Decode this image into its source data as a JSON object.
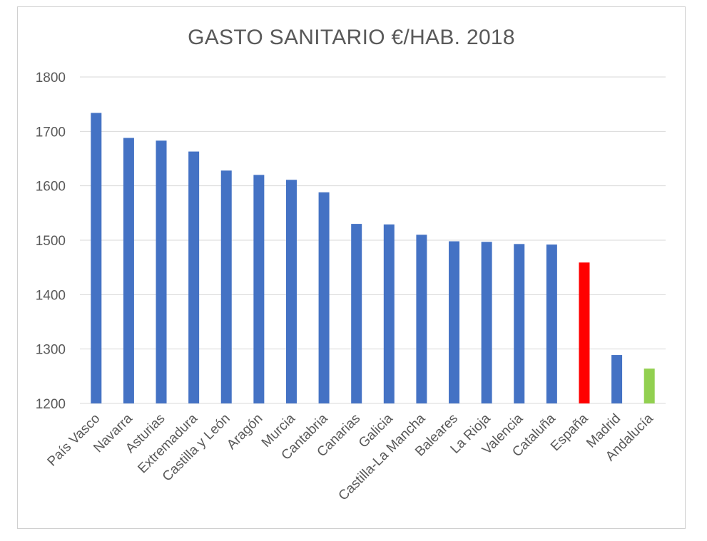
{
  "chart_data": {
    "type": "bar",
    "title": "GASTO SANITARIO €/HAB. 2018",
    "xlabel": "",
    "ylabel": "",
    "ylim": [
      1200,
      1800
    ],
    "yticks": [
      1200,
      1300,
      1400,
      1500,
      1600,
      1700,
      1800
    ],
    "grid": true,
    "legend": "none",
    "categories": [
      "País Vasco",
      "Navarra",
      "Asturias",
      "Extremadura",
      "Castilla y León",
      "Aragón",
      "Murcia",
      "Cantabria",
      "Canarias",
      "Galicia",
      "Castilla-La Mancha",
      "Baleares",
      "La Rioja",
      "Valencia",
      "Cataluña",
      "España",
      "Madrid",
      "Andalucía"
    ],
    "values": [
      1734,
      1688,
      1683,
      1663,
      1628,
      1620,
      1611,
      1588,
      1530,
      1529,
      1510,
      1498,
      1497,
      1493,
      1492,
      1459,
      1289,
      1264
    ],
    "bar_colors": [
      "#4472C4",
      "#4472C4",
      "#4472C4",
      "#4472C4",
      "#4472C4",
      "#4472C4",
      "#4472C4",
      "#4472C4",
      "#4472C4",
      "#4472C4",
      "#4472C4",
      "#4472C4",
      "#4472C4",
      "#4472C4",
      "#4472C4",
      "#FF0000",
      "#4472C4",
      "#92D050"
    ]
  }
}
